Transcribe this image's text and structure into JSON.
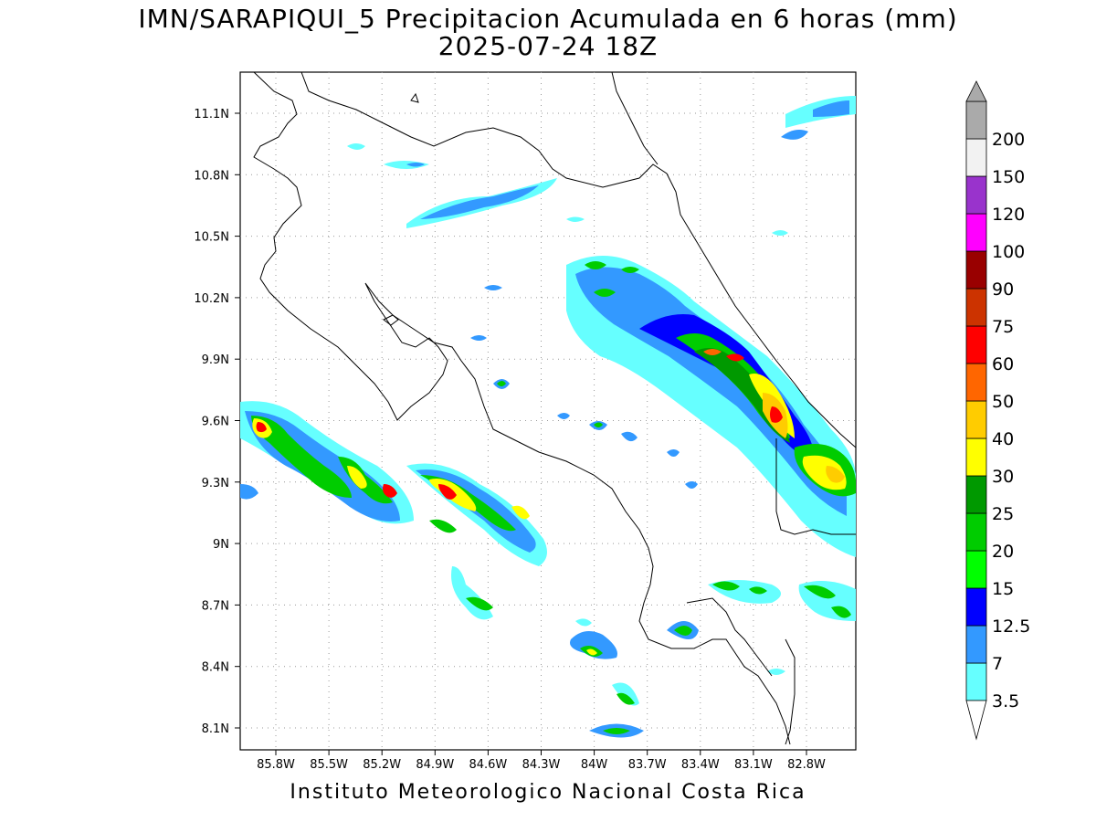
{
  "title_line1": "IMN/SARAPIQUI_5 Precipitacion Acumulada en 6 horas (mm)",
  "title_line2": "2025-07-24 18Z",
  "footer": "Instituto Meteorologico Nacional Costa Rica",
  "map": {
    "lon_labels": [
      "85.8W",
      "85.5W",
      "85.2W",
      "84.9W",
      "84.6W",
      "84.3W",
      "84W",
      "83.7W",
      "83.4W",
      "83.1W",
      "82.8W"
    ],
    "lat_labels": [
      "11.1N",
      "10.8N",
      "10.5N",
      "10.2N",
      "9.9N",
      "9.6N",
      "9.3N",
      "9N",
      "8.7N",
      "8.4N",
      "8.1N"
    ],
    "grid": "dotted"
  },
  "colorbar": {
    "labels": [
      "3.5",
      "7",
      "12.5",
      "15",
      "20",
      "25",
      "30",
      "40",
      "50",
      "60",
      "75",
      "90",
      "100",
      "120",
      "150",
      "200"
    ],
    "colors": [
      "#66ffff",
      "#3399ff",
      "#0000ff",
      "#00ff00",
      "#00cc00",
      "#009900",
      "#ffff00",
      "#ffcc00",
      "#ff6600",
      "#ff0000",
      "#cc3300",
      "#990000",
      "#ff00ff",
      "#9933cc",
      "#f2f2f2",
      "#aaaaaa"
    ]
  }
}
